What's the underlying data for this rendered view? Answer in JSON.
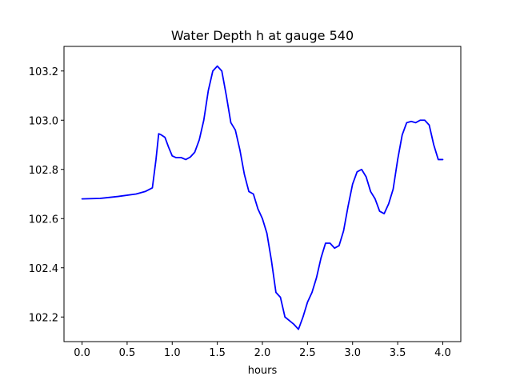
{
  "chart_data": {
    "type": "line",
    "title": "Water Depth h at gauge 540",
    "xlabel": "hours",
    "ylabel": "",
    "xlim": [
      -0.2,
      4.2
    ],
    "ylim": [
      102.1,
      103.3
    ],
    "xticks": [
      0.0,
      0.5,
      1.0,
      1.5,
      2.0,
      2.5,
      3.0,
      3.5,
      4.0
    ],
    "xtick_labels": [
      "0.0",
      "0.5",
      "1.0",
      "1.5",
      "2.0",
      "2.5",
      "3.0",
      "3.5",
      "4.0"
    ],
    "yticks": [
      102.2,
      102.4,
      102.6,
      102.8,
      103.0,
      103.2
    ],
    "ytick_labels": [
      "102.2",
      "102.4",
      "102.6",
      "102.8",
      "103.0",
      "103.2"
    ],
    "grid": false,
    "series": [
      {
        "color": "#0000ff",
        "x": [
          0.0,
          0.2,
          0.4,
          0.6,
          0.7,
          0.78,
          0.82,
          0.85,
          0.88,
          0.92,
          0.96,
          1.0,
          1.04,
          1.1,
          1.15,
          1.2,
          1.25,
          1.3,
          1.35,
          1.4,
          1.45,
          1.5,
          1.55,
          1.6,
          1.65,
          1.7,
          1.75,
          1.8,
          1.85,
          1.9,
          1.95,
          2.0,
          2.05,
          2.1,
          2.15,
          2.2,
          2.25,
          2.3,
          2.35,
          2.4,
          2.45,
          2.5,
          2.55,
          2.6,
          2.65,
          2.7,
          2.75,
          2.8,
          2.85,
          2.9,
          2.95,
          3.0,
          3.05,
          3.1,
          3.15,
          3.2,
          3.25,
          3.3,
          3.35,
          3.4,
          3.45,
          3.5,
          3.55,
          3.6,
          3.65,
          3.7,
          3.75,
          3.8,
          3.85,
          3.9,
          3.95,
          4.0
        ],
        "y": [
          102.68,
          102.682,
          102.69,
          102.7,
          102.71,
          102.725,
          102.84,
          102.945,
          102.94,
          102.93,
          102.89,
          102.855,
          102.848,
          102.848,
          102.84,
          102.85,
          102.87,
          102.92,
          103.0,
          103.12,
          103.2,
          103.22,
          103.2,
          103.1,
          102.99,
          102.96,
          102.88,
          102.78,
          102.71,
          102.7,
          102.64,
          102.6,
          102.54,
          102.43,
          102.3,
          102.28,
          102.2,
          102.185,
          102.17,
          102.15,
          102.2,
          102.26,
          102.3,
          102.36,
          102.44,
          102.5,
          102.5,
          102.48,
          102.49,
          102.55,
          102.65,
          102.74,
          102.79,
          102.8,
          102.77,
          102.71,
          102.68,
          102.63,
          102.62,
          102.66,
          102.72,
          102.84,
          102.94,
          102.99,
          102.995,
          102.99,
          103.0,
          103.0,
          102.98,
          102.9,
          102.84,
          102.84
        ]
      }
    ]
  }
}
